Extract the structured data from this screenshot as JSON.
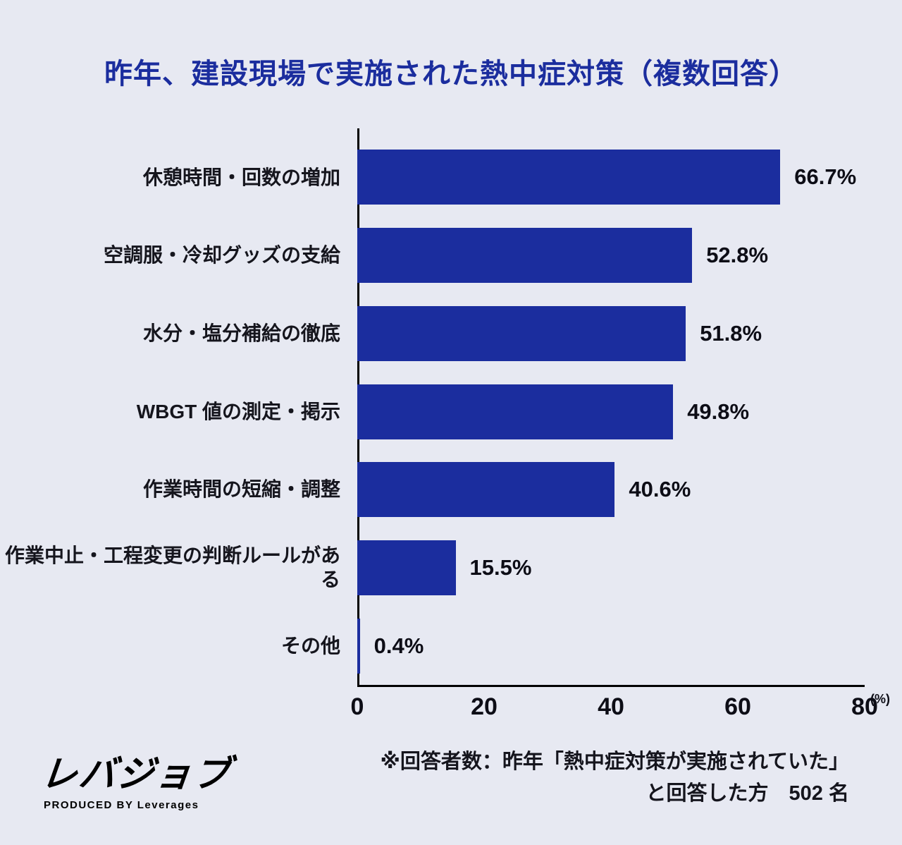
{
  "title": "昨年、建設現場で実施された熱中症対策（複数回答）",
  "colors": {
    "background": "#e7e9f2",
    "bar": "#1b2d9e",
    "title": "#1b2d9e"
  },
  "chart_data": {
    "type": "bar",
    "orientation": "horizontal",
    "title": "昨年、建設現場で実施された熱中症対策（複数回答）",
    "categories": [
      "休憩時間・回数の増加",
      "空調服・冷却グッズの支給",
      "水分・塩分補給の徹底",
      "WBGT 値の測定・掲示",
      "作業時間の短縮・調整",
      "作業中止・工程変更の判断ルールがある",
      "その他"
    ],
    "values": [
      66.7,
      52.8,
      51.8,
      49.8,
      40.6,
      15.5,
      0.4
    ],
    "value_labels": [
      "66.7%",
      "52.8%",
      "51.8%",
      "49.8%",
      "40.6%",
      "15.5%",
      "0.4%"
    ],
    "xlim": [
      0,
      80
    ],
    "x_ticks": [
      0,
      20,
      40,
      60,
      80
    ],
    "x_unit": "(%)",
    "grid": false,
    "legend": false,
    "bar_color": "#1b2d9e"
  },
  "footer": {
    "logo_text": "レバジョブ",
    "logo_sub": "PRODUCED BY Leverages",
    "note_line1": "※回答者数：昨年「熱中症対策が実施されていた」",
    "note_line2": "と回答した方　502 名"
  }
}
